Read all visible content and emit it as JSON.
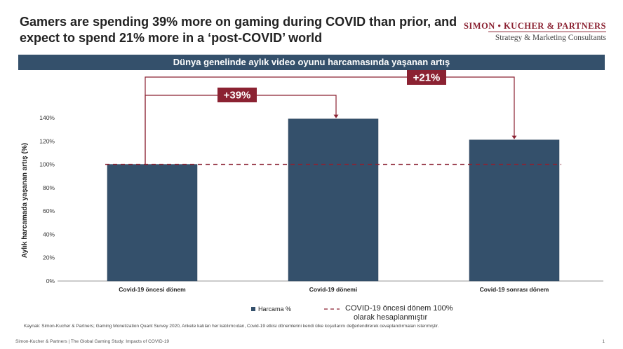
{
  "header": {
    "title": "Gamers are spending 39% more on gaming during COVID than prior, and expect to spend 21% more in a ‘post-COVID’ world",
    "brand_name": "SIMON • KUCHER & PARTNERS",
    "brand_tagline": "Strategy & Marketing Consultants"
  },
  "banner": {
    "text": "Dünya genelinde aylık video oyunu harcamasında yaşanan artış"
  },
  "colors": {
    "bar": "#34506b",
    "accent": "#8b2232",
    "reference": "#8b2232"
  },
  "chart_data": {
    "type": "bar",
    "categories": [
      "Covid-19 öncesi dönem",
      "Covid-19 dönemi",
      "Covid-19 sonrası dönem"
    ],
    "series": [
      {
        "name": "Harcama %",
        "values": [
          100,
          139,
          121
        ]
      }
    ],
    "ylabel": "Aylık harcamada yaşanan artış (%)",
    "xlabel": "",
    "ylim": [
      0,
      140
    ],
    "yticks": [
      "0%",
      "20%",
      "40%",
      "60%",
      "80%",
      "100%",
      "120%",
      "140%"
    ],
    "reference_line": {
      "value": 100,
      "label": "COVID-19 öncesi dönem 100% olarak hesaplanmıştır"
    },
    "annotations": [
      {
        "from": 0,
        "to": 1,
        "label": "+39%"
      },
      {
        "from": 0,
        "to": 2,
        "label": "+21%"
      }
    ],
    "legend_position": "bottom",
    "grid": false
  },
  "footer": {
    "source": "Kaynak: Simon-Kucher & Partners; Gaming Monetization Quant Survey 2020, Ankete katılan her katılımcıdan, Covid-19 etkisi dönemlerini kendi ülke koşullarını değerlendirerek cevaplandırmaları istenmiştir.",
    "left": "Simon-Kucher & Partners | The Global Gaming Study: Impacts of COVID-19",
    "page": "1"
  }
}
